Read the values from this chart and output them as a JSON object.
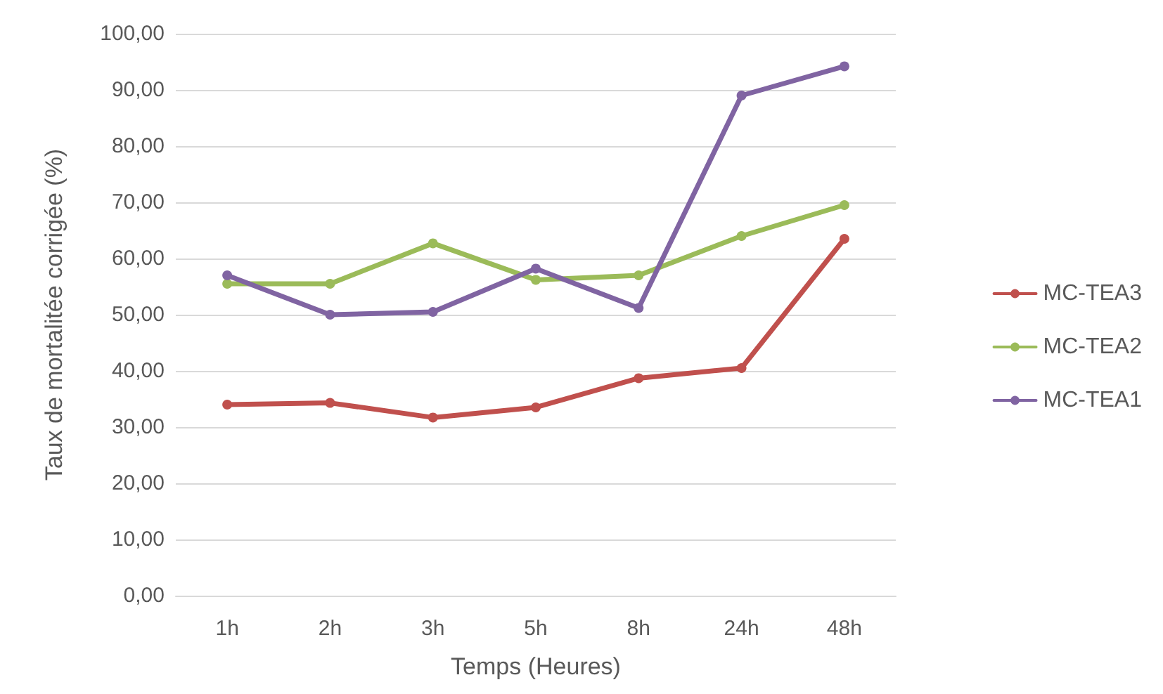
{
  "chart_data": {
    "type": "line",
    "xlabel": "Temps (Heures)",
    "ylabel": "Taux de mortalitée corrigée (%)",
    "categories": [
      "1h",
      "2h",
      "3h",
      "5h",
      "8h",
      "24h",
      "48h"
    ],
    "series": [
      {
        "name": "MC-TEA3",
        "color": "#c0504d",
        "values": [
          34,
          34.3,
          31.7,
          33.5,
          38.7,
          40.5,
          63.5
        ]
      },
      {
        "name": "MC-TEA2",
        "color": "#9bbb59",
        "values": [
          55.5,
          55.5,
          62.7,
          56.2,
          57,
          64,
          69.5
        ]
      },
      {
        "name": "MC-TEA1",
        "color": "#8064a2",
        "values": [
          57,
          50,
          50.5,
          58.2,
          51.2,
          89,
          94.2
        ]
      }
    ],
    "ylim": [
      0,
      100
    ],
    "yticks": [
      {
        "value": 0,
        "label": "0,00"
      },
      {
        "value": 10,
        "label": "10,00"
      },
      {
        "value": 20,
        "label": "20,00"
      },
      {
        "value": 30,
        "label": "30,00"
      },
      {
        "value": 40,
        "label": "40,00"
      },
      {
        "value": 50,
        "label": "50,00"
      },
      {
        "value": 60,
        "label": "60,00"
      },
      {
        "value": 70,
        "label": "70,00"
      },
      {
        "value": 80,
        "label": "80,00"
      },
      {
        "value": 90,
        "label": "90,00"
      },
      {
        "value": 100,
        "label": "100,00"
      }
    ],
    "grid": "y",
    "legend": "right",
    "marker": "circle",
    "line_style": "solid"
  }
}
